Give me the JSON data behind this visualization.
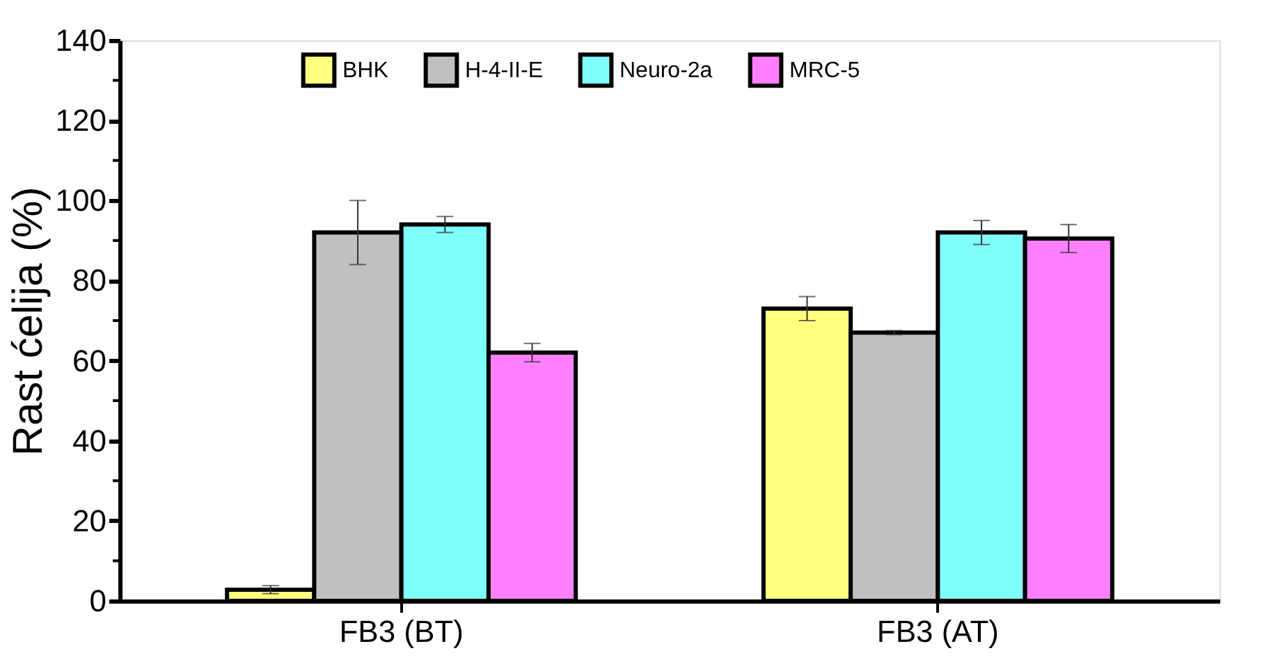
{
  "chart_data": {
    "type": "bar",
    "ylabel": "Rast ćelija (%)",
    "categories": [
      "FB3 (BT)",
      "FB3 (AT)"
    ],
    "series": [
      {
        "name": "BHK",
        "color": "#ffff80",
        "values": [
          2.8,
          73
        ],
        "errors": [
          1,
          3
        ]
      },
      {
        "name": "H-4-II-E",
        "color": "#c0c0c0",
        "values": [
          92,
          67
        ],
        "errors": [
          8,
          0.5
        ]
      },
      {
        "name": "Neuro-2a",
        "color": "#80ffff",
        "values": [
          94,
          92
        ],
        "errors": [
          2,
          3
        ]
      },
      {
        "name": "MRC-5",
        "color": "#ff80ff",
        "values": [
          62,
          90.5
        ],
        "errors": [
          2.3,
          3.5
        ]
      }
    ],
    "ylim": [
      0,
      140
    ],
    "yticks": [
      0,
      {
        "value": 10,
        "label": null
      },
      20,
      {
        "value": 30,
        "label": null
      },
      40,
      {
        "value": 50,
        "label": null
      },
      60,
      {
        "value": 70,
        "label": null
      },
      80,
      {
        "value": 90,
        "label": null
      },
      100,
      {
        "value": 110,
        "label": null
      },
      120,
      {
        "value": 130,
        "label": null
      },
      140
    ],
    "legend": "top",
    "grid": false
  }
}
